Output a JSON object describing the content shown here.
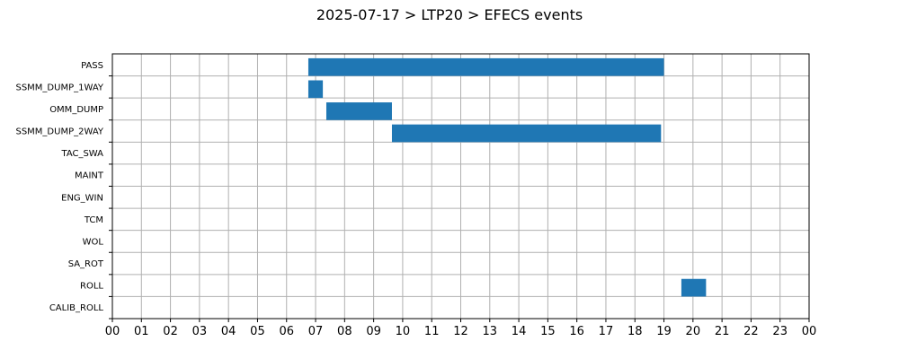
{
  "chart_data": {
    "type": "bar",
    "orientation": "horizontal",
    "title": "2025-07-17 > LTP20 > EFECS events",
    "xlabel": "",
    "ylabel": "",
    "grid": true,
    "xlim": [
      0,
      24
    ],
    "x_tick_labels": [
      "00",
      "01",
      "02",
      "03",
      "04",
      "05",
      "06",
      "07",
      "08",
      "09",
      "10",
      "11",
      "12",
      "13",
      "14",
      "15",
      "16",
      "17",
      "18",
      "19",
      "20",
      "21",
      "22",
      "23",
      "00"
    ],
    "categories": [
      "PASS",
      "SSMM_DUMP_1WAY",
      "OMM_DUMP",
      "SSMM_DUMP_2WAY",
      "TAC_SWA",
      "MAINT",
      "ENG_WIN",
      "TCM",
      "WOL",
      "SA_ROT",
      "ROLL",
      "CALIB_ROLL"
    ],
    "bar_color": "#1f77b4",
    "intervals": [
      {
        "category": "PASS",
        "start": 6.75,
        "end": 19.0
      },
      {
        "category": "SSMM_DUMP_1WAY",
        "start": 6.75,
        "end": 7.25
      },
      {
        "category": "OMM_DUMP",
        "start": 7.37,
        "end": 9.63
      },
      {
        "category": "SSMM_DUMP_2WAY",
        "start": 9.63,
        "end": 18.9
      },
      {
        "category": "ROLL",
        "start": 19.6,
        "end": 20.45
      }
    ]
  }
}
